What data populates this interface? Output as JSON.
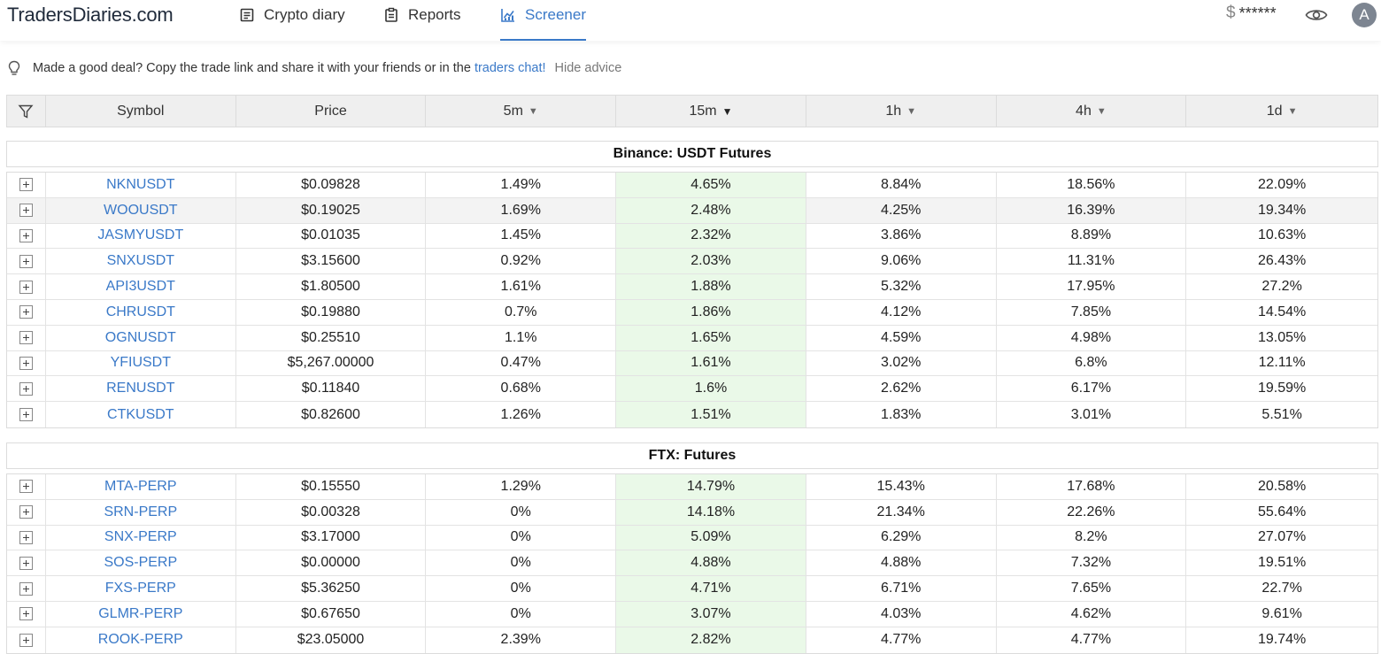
{
  "header": {
    "logo": "TradersDiaries.com",
    "nav": [
      {
        "label": "Crypto diary",
        "icon": "diary-icon"
      },
      {
        "label": "Reports",
        "icon": "clipboard-icon"
      },
      {
        "label": "Screener",
        "icon": "chart-icon",
        "active": true
      }
    ],
    "balance_currency": "$",
    "balance_masked": "******",
    "avatar_letter": "A"
  },
  "advice": {
    "text": "Made a good deal? Copy the trade link and share it with your friends or in the ",
    "link": "traders chat!",
    "hide": "Hide advice"
  },
  "table": {
    "columns": [
      "Symbol",
      "Price",
      "5m",
      "15m",
      "1h",
      "4h",
      "1d"
    ],
    "arrow_down": "▼",
    "groups": [
      {
        "title": "Binance: USDT Futures",
        "rows": [
          [
            "NKNUSDT",
            "$0.09828",
            "1.49%",
            "4.65%",
            "8.84%",
            "18.56%",
            "22.09%"
          ],
          [
            "WOOUSDT",
            "$0.19025",
            "1.69%",
            "2.48%",
            "4.25%",
            "16.39%",
            "19.34%"
          ],
          [
            "JASMYUSDT",
            "$0.01035",
            "1.45%",
            "2.32%",
            "3.86%",
            "8.89%",
            "10.63%"
          ],
          [
            "SNXUSDT",
            "$3.15600",
            "0.92%",
            "2.03%",
            "9.06%",
            "11.31%",
            "26.43%"
          ],
          [
            "API3USDT",
            "$1.80500",
            "1.61%",
            "1.88%",
            "5.32%",
            "17.95%",
            "27.2%"
          ],
          [
            "CHRUSDT",
            "$0.19880",
            "0.7%",
            "1.86%",
            "4.12%",
            "7.85%",
            "14.54%"
          ],
          [
            "OGNUSDT",
            "$0.25510",
            "1.1%",
            "1.65%",
            "4.59%",
            "4.98%",
            "13.05%"
          ],
          [
            "YFIUSDT",
            "$5,267.00000",
            "0.47%",
            "1.61%",
            "3.02%",
            "6.8%",
            "12.11%"
          ],
          [
            "RENUSDT",
            "$0.11840",
            "0.68%",
            "1.6%",
            "2.62%",
            "6.17%",
            "19.59%"
          ],
          [
            "CTKUSDT",
            "$0.82600",
            "1.26%",
            "1.51%",
            "1.83%",
            "3.01%",
            "5.51%"
          ]
        ]
      },
      {
        "title": "FTX: Futures",
        "rows": [
          [
            "MTA-PERP",
            "$0.15550",
            "1.29%",
            "14.79%",
            "15.43%",
            "17.68%",
            "20.58%"
          ],
          [
            "SRN-PERP",
            "$0.00328",
            "0%",
            "14.18%",
            "21.34%",
            "22.26%",
            "55.64%"
          ],
          [
            "SNX-PERP",
            "$3.17000",
            "0%",
            "5.09%",
            "6.29%",
            "8.2%",
            "27.07%"
          ],
          [
            "SOS-PERP",
            "$0.00000",
            "0%",
            "4.88%",
            "4.88%",
            "7.32%",
            "19.51%"
          ],
          [
            "FXS-PERP",
            "$5.36250",
            "0%",
            "4.71%",
            "6.71%",
            "7.65%",
            "22.7%"
          ],
          [
            "GLMR-PERP",
            "$0.67650",
            "0%",
            "3.07%",
            "4.03%",
            "4.62%",
            "9.61%"
          ],
          [
            "ROOK-PERP",
            "$23.05000",
            "2.39%",
            "2.82%",
            "4.77%",
            "4.77%",
            "19.74%"
          ]
        ]
      }
    ]
  }
}
